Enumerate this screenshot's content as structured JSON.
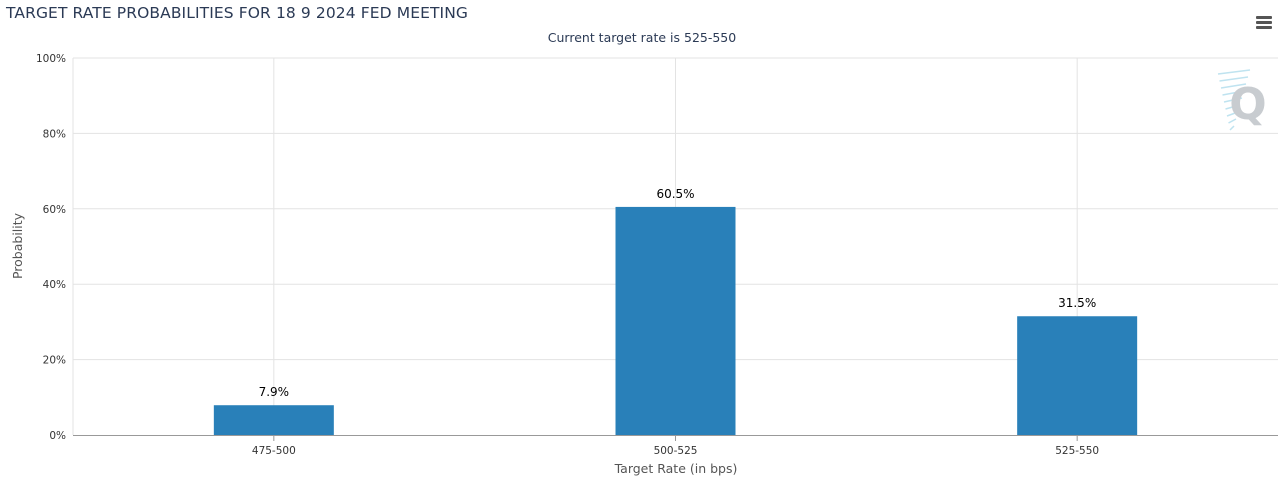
{
  "colors": {
    "bar": "#2980b9",
    "grid": "#e3e3e3",
    "axis": "#999999",
    "title": "#2b3a55",
    "watermark": "#c8ccd0"
  },
  "watermark": {
    "letter": "Q"
  },
  "menu": {
    "icon": "hamburger-menu-icon"
  },
  "chart_data": {
    "type": "bar",
    "title": "TARGET RATE PROBABILITIES FOR 18 9 2024 FED MEETING",
    "subtitle": "Current target rate is 525-550",
    "xlabel": "Target Rate (in bps)",
    "ylabel": "Probability",
    "categories": [
      "475-500",
      "500-525",
      "525-550"
    ],
    "values": [
      7.9,
      60.5,
      31.5
    ],
    "data_labels": [
      "7.9%",
      "60.5%",
      "31.5%"
    ],
    "ylim": [
      0,
      100
    ],
    "yticks": [
      "0%",
      "20%",
      "40%",
      "60%",
      "80%",
      "100%"
    ],
    "grid": true,
    "legend": "none"
  }
}
